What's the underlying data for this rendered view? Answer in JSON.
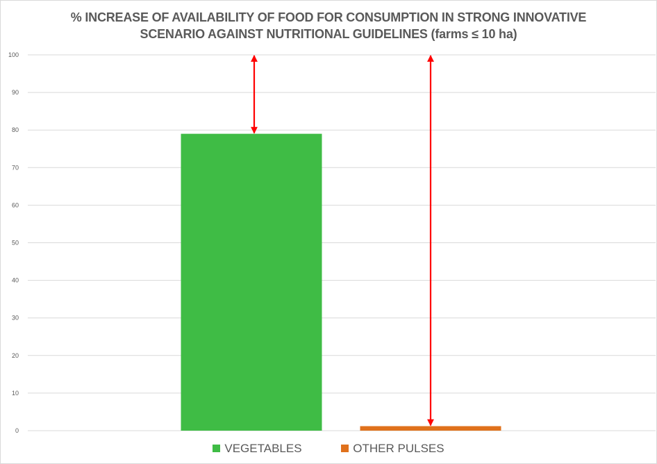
{
  "chart_data": {
    "type": "bar",
    "title_lines": [
      "% INCREASE OF AVAILABILITY OF FOOD FOR CONSUMPTION IN STRONG INNOVATIVE",
      "SCENARIO AGAINST NUTRITIONAL GUIDELINES (farms ≤ 10 ha)"
    ],
    "series": [
      {
        "name": "VEGETABLES",
        "value": 79,
        "color": "#3fbc45"
      },
      {
        "name": "OTHER PULSES",
        "value": 1.2,
        "color": "#e0711c"
      }
    ],
    "ylim": [
      0,
      100
    ],
    "yticks": [
      "0",
      "10",
      "20",
      "30",
      "40",
      "50",
      "60",
      "70",
      "80",
      "90",
      "100"
    ],
    "grid": true,
    "legend_position": "bottom",
    "annotations": [
      {
        "type": "double-arrow",
        "series": "VEGETABLES",
        "from": 79,
        "to": 100,
        "color": "#ff0000"
      },
      {
        "type": "double-arrow",
        "series": "OTHER PULSES",
        "from": 1.2,
        "to": 100,
        "color": "#ff0000"
      }
    ]
  }
}
